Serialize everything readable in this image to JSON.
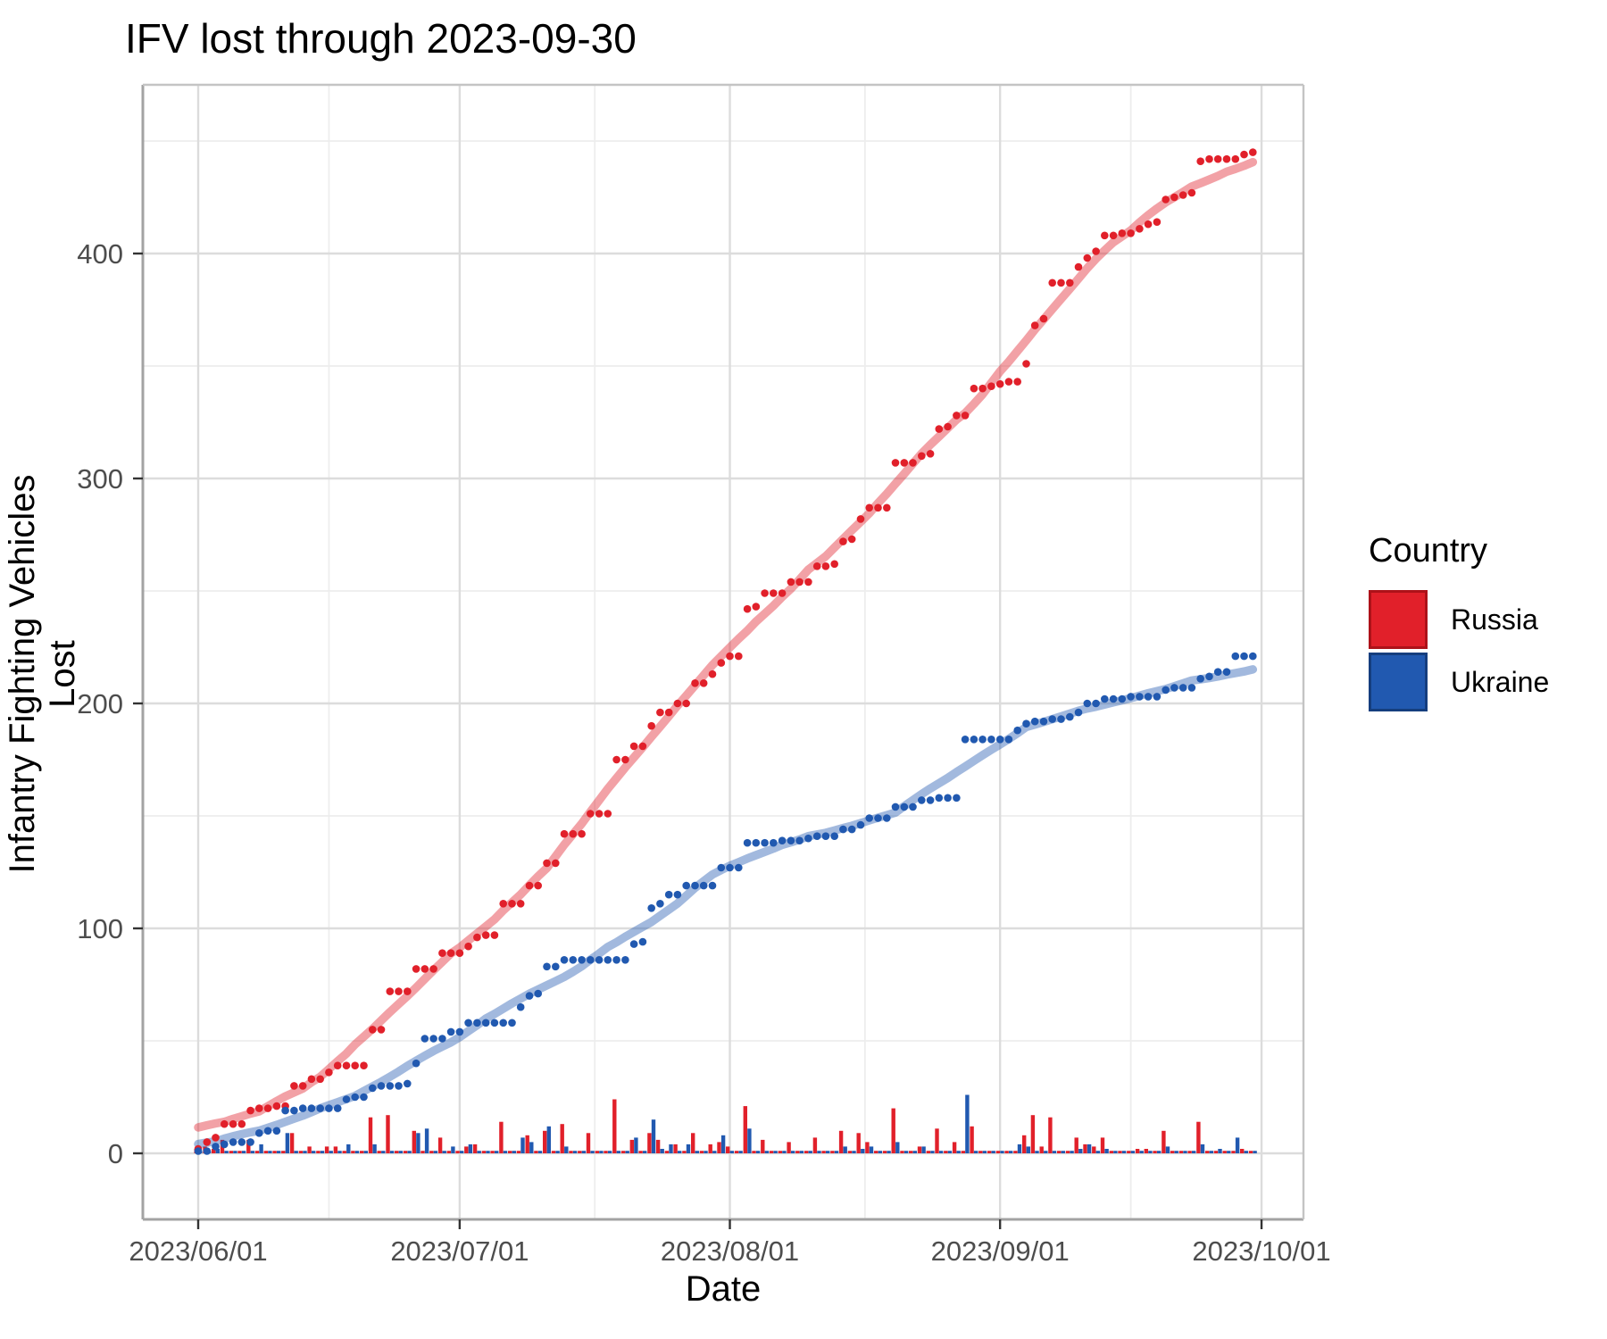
{
  "title": "IFV lost through 2023-09-30",
  "axes": {
    "x_label": "Date",
    "y_label": "Infantry Fighting Vehicles Lost"
  },
  "legend": {
    "title": "Country",
    "entries": [
      {
        "label": "Russia",
        "color": "#E1202A",
        "border": "#AD1219"
      },
      {
        "label": "Ukraine",
        "color": "#2159B0",
        "border": "#153E7E"
      }
    ]
  },
  "chart_data": {
    "type": "line+scatter+bar",
    "title": "IFV lost through 2023-09-30",
    "xlabel": "Date",
    "ylabel": "Infantry Fighting Vehicles Lost",
    "start_date": "2023-06-01",
    "end_date": "2023-09-30",
    "n_days": 122,
    "x_tick_labels": [
      "2023/06/01",
      "2023/07/01",
      "2023/08/01",
      "2023/09/01",
      "2023/10/01"
    ],
    "x_tick_days": [
      0,
      30,
      61,
      92,
      122
    ],
    "x_minor_days": [
      15,
      45.5,
      76.5,
      107
    ],
    "y_ticks": [
      0,
      100,
      200,
      300,
      400
    ],
    "y_minor_ticks": [
      50,
      150,
      250,
      350,
      450
    ],
    "ylim": [
      -30,
      475
    ],
    "grid": true,
    "legend_position": "right",
    "description": "Dots show cumulative losses per day, thick translucent lines are smoothed trends, small bars along the baseline show daily losses.",
    "series": [
      {
        "name": "Russia",
        "color": "#E1202A",
        "cumulative": [
          2,
          5,
          7,
          13,
          13,
          13,
          19,
          20,
          20,
          21,
          21,
          30,
          30,
          33,
          33,
          36,
          39,
          39,
          39,
          39,
          55,
          55,
          72,
          72,
          72,
          82,
          82,
          82,
          89,
          89,
          89,
          92,
          96,
          97,
          97,
          111,
          111,
          111,
          119,
          119,
          129,
          129,
          142,
          142,
          142,
          151,
          151,
          151,
          175,
          175,
          181,
          181,
          190,
          196,
          196,
          200,
          200,
          209,
          209,
          213,
          218,
          221,
          221,
          242,
          243,
          249,
          249,
          249,
          254,
          254,
          254,
          261,
          261,
          262,
          272,
          273,
          282,
          287,
          287,
          287,
          307,
          307,
          307,
          310,
          311,
          322,
          323,
          328,
          328,
          340,
          340,
          341,
          342,
          343,
          343,
          351,
          368,
          371,
          387,
          387,
          387,
          394,
          398,
          401,
          408,
          408,
          409,
          409,
          411,
          413,
          414,
          424,
          425,
          426,
          427,
          441,
          442,
          442,
          442,
          442,
          444,
          445
        ],
        "daily": [
          2,
          3,
          2,
          6,
          0,
          0,
          6,
          1,
          0,
          1,
          0,
          9,
          0,
          3,
          0,
          3,
          3,
          0,
          0,
          0,
          16,
          0,
          17,
          0,
          0,
          10,
          0,
          0,
          7,
          0,
          0,
          3,
          4,
          1,
          0,
          14,
          0,
          0,
          8,
          0,
          10,
          0,
          13,
          0,
          0,
          9,
          0,
          0,
          24,
          0,
          6,
          0,
          9,
          6,
          0,
          4,
          0,
          9,
          0,
          4,
          5,
          3,
          0,
          21,
          1,
          6,
          0,
          0,
          5,
          0,
          0,
          7,
          0,
          1,
          10,
          1,
          9,
          5,
          0,
          0,
          20,
          0,
          0,
          3,
          1,
          11,
          1,
          5,
          0,
          12,
          0,
          1,
          1,
          1,
          0,
          8,
          17,
          3,
          16,
          0,
          0,
          7,
          4,
          3,
          7,
          0,
          1,
          0,
          2,
          2,
          1,
          10,
          1,
          1,
          1,
          14,
          1,
          0,
          0,
          0,
          2,
          1
        ]
      },
      {
        "name": "Ukraine",
        "color": "#2159B0",
        "cumulative": [
          1,
          1,
          3,
          4,
          5,
          5,
          5,
          9,
          10,
          10,
          19,
          19,
          20,
          20,
          20,
          20,
          20,
          24,
          25,
          25,
          29,
          30,
          30,
          30,
          31,
          40,
          51,
          51,
          51,
          54,
          54,
          58,
          58,
          58,
          58,
          58,
          58,
          65,
          70,
          71,
          83,
          83,
          86,
          86,
          86,
          86,
          86,
          86,
          86,
          86,
          93,
          94,
          109,
          111,
          115,
          115,
          119,
          119,
          119,
          119,
          127,
          127,
          127,
          138,
          138,
          138,
          138,
          139,
          139,
          139,
          140,
          141,
          141,
          141,
          144,
          144,
          146,
          149,
          149,
          149,
          154,
          154,
          154,
          157,
          157,
          158,
          158,
          158,
          184,
          184,
          184,
          184,
          184,
          184,
          188,
          191,
          192,
          192,
          193,
          193,
          194,
          196,
          200,
          200,
          202,
          202,
          202,
          203,
          203,
          203,
          203,
          206,
          207,
          207,
          207,
          211,
          212,
          214,
          214,
          221,
          221,
          221
        ],
        "daily": [
          1,
          0,
          2,
          1,
          1,
          0,
          0,
          4,
          1,
          0,
          9,
          0,
          1,
          0,
          0,
          0,
          0,
          4,
          1,
          0,
          4,
          1,
          0,
          0,
          1,
          9,
          11,
          0,
          0,
          3,
          0,
          4,
          0,
          0,
          0,
          0,
          0,
          7,
          5,
          1,
          12,
          0,
          3,
          0,
          0,
          0,
          0,
          0,
          0,
          0,
          7,
          1,
          15,
          2,
          4,
          0,
          4,
          0,
          0,
          0,
          8,
          0,
          0,
          11,
          0,
          0,
          0,
          1,
          0,
          0,
          1,
          1,
          0,
          0,
          3,
          0,
          2,
          3,
          0,
          0,
          5,
          0,
          0,
          3,
          0,
          1,
          0,
          0,
          26,
          0,
          0,
          0,
          0,
          0,
          4,
          3,
          1,
          0,
          1,
          0,
          1,
          2,
          4,
          0,
          2,
          0,
          0,
          1,
          0,
          0,
          0,
          3,
          1,
          0,
          0,
          4,
          1,
          2,
          0,
          7,
          0,
          0
        ]
      }
    ]
  },
  "style": {
    "grid_major_color": "#DCDCDC",
    "grid_minor_color": "#EDEDED",
    "axis_line_color": "#A3A3A3",
    "tick_label_color": "#4D4D4D",
    "panel_bg": "#FFFFFF"
  }
}
